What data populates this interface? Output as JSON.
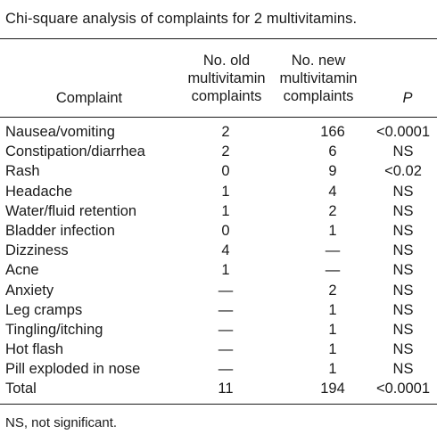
{
  "caption": "Chi-square analysis of complaints for 2 multivitamins.",
  "headers": {
    "complaint": "Complaint",
    "old_line1": "No. old",
    "old_line2": "multivitamin",
    "old_line3": "complaints",
    "new_line1": "No. new",
    "new_line2": "multivitamin",
    "new_line3": "complaints",
    "p": "P"
  },
  "rows": [
    {
      "complaint": "Nausea/vomiting",
      "old": "2",
      "new": "166",
      "p": "<0.0001"
    },
    {
      "complaint": "Constipation/diarrhea",
      "old": "2",
      "new": "6",
      "p": "NS"
    },
    {
      "complaint": "Rash",
      "old": "0",
      "new": "9",
      "p": "<0.02"
    },
    {
      "complaint": "Headache",
      "old": "1",
      "new": "4",
      "p": "NS"
    },
    {
      "complaint": "Water/fluid retention",
      "old": "1",
      "new": "2",
      "p": "NS"
    },
    {
      "complaint": "Bladder infection",
      "old": "0",
      "new": "1",
      "p": "NS"
    },
    {
      "complaint": "Dizziness",
      "old": "4",
      "new": "—",
      "p": "NS"
    },
    {
      "complaint": "Acne",
      "old": "1",
      "new": "—",
      "p": "NS"
    },
    {
      "complaint": "Anxiety",
      "old": "—",
      "new": "2",
      "p": "NS"
    },
    {
      "complaint": "Leg cramps",
      "old": "—",
      "new": "1",
      "p": "NS"
    },
    {
      "complaint": "Tingling/itching",
      "old": "—",
      "new": "1",
      "p": "NS"
    },
    {
      "complaint": "Hot flash",
      "old": "—",
      "new": "1",
      "p": "NS"
    },
    {
      "complaint": "Pill exploded in nose",
      "old": "—",
      "new": "1",
      "p": "NS"
    },
    {
      "complaint": "Total",
      "old": "11",
      "new": "194",
      "p": "<0.0001"
    }
  ],
  "footnote": "NS, not significant."
}
